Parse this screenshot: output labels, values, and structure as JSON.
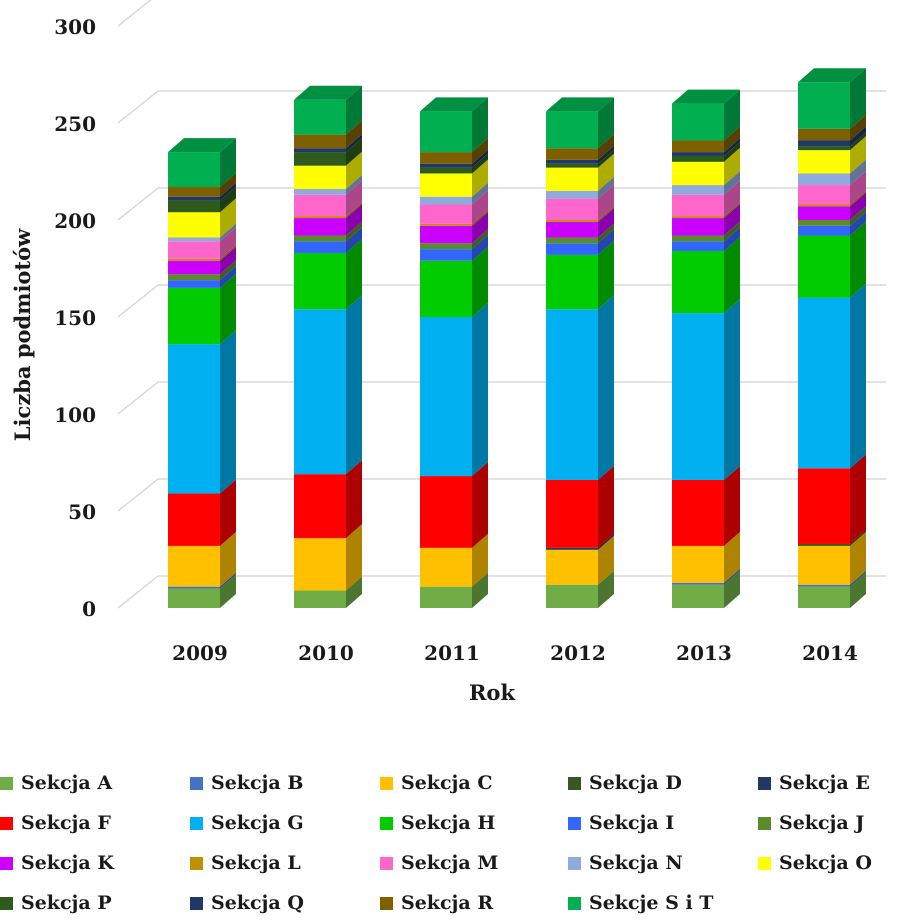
{
  "chart_data": {
    "type": "bar",
    "stacked": true,
    "three_d": true,
    "title": "",
    "xlabel": "Rok",
    "ylabel": "Liczba podmiotów",
    "ylim": [
      0,
      300
    ],
    "yticks": [
      0,
      50,
      100,
      150,
      200,
      250,
      300
    ],
    "ytick_labels": [
      "0",
      "50",
      "100",
      "150",
      "200",
      "250",
      "300"
    ],
    "grid": true,
    "legend_position": "bottom",
    "categories": [
      "2009",
      "2010",
      "2011",
      "2012",
      "2013",
      "2014"
    ],
    "series": [
      {
        "name": "Sekcja A",
        "color": "#70ad47",
        "values": [
          10,
          9,
          11,
          12,
          12,
          11
        ]
      },
      {
        "name": "Sekcja B",
        "color": "#4472c4",
        "values": [
          1,
          0,
          0,
          0,
          1,
          1
        ]
      },
      {
        "name": "Sekcja C",
        "color": "#ffc000",
        "values": [
          21,
          27,
          20,
          18,
          19,
          20
        ]
      },
      {
        "name": "Sekcja D",
        "color": "#375623",
        "values": [
          0,
          0,
          0,
          0,
          0,
          1
        ]
      },
      {
        "name": "Sekcja E",
        "color": "#203864",
        "values": [
          0,
          0,
          0,
          1,
          0,
          0
        ]
      },
      {
        "name": "Sekcja F",
        "color": "#ff0000",
        "values": [
          27,
          33,
          37,
          35,
          34,
          39
        ]
      },
      {
        "name": "Sekcja G",
        "color": "#00b0f0",
        "values": [
          77,
          85,
          82,
          88,
          86,
          88
        ]
      },
      {
        "name": "Sekcja H",
        "color": "#00cc00",
        "values": [
          29,
          29,
          29,
          28,
          32,
          32
        ]
      },
      {
        "name": "Sekcja I",
        "color": "#3366ff",
        "values": [
          4,
          6,
          6,
          6,
          5,
          5
        ]
      },
      {
        "name": "Sekcja J",
        "color": "#5b8c2a",
        "values": [
          3,
          3,
          3,
          3,
          3,
          3
        ]
      },
      {
        "name": "Sekcja K",
        "color": "#cc00ff",
        "values": [
          7,
          9,
          9,
          8,
          9,
          7
        ]
      },
      {
        "name": "Sekcja L",
        "color": "#bf9000",
        "values": [
          1,
          1,
          1,
          1,
          1,
          1
        ]
      },
      {
        "name": "Sekcja M",
        "color": "#ff66cc",
        "values": [
          9,
          11,
          10,
          11,
          11,
          10
        ]
      },
      {
        "name": "Sekcja N",
        "color": "#8faadc",
        "values": [
          2,
          3,
          4,
          4,
          5,
          6
        ]
      },
      {
        "name": "Sekcja O",
        "color": "#ffff00",
        "values": [
          13,
          12,
          12,
          12,
          12,
          12
        ]
      },
      {
        "name": "Sekcja P",
        "color": "#2e5a1c",
        "values": [
          6,
          7,
          3,
          2,
          3,
          2
        ]
      },
      {
        "name": "Sekcja Q",
        "color": "#1f3864",
        "values": [
          2,
          2,
          2,
          2,
          2,
          3
        ]
      },
      {
        "name": "Sekcja R",
        "color": "#7f6000",
        "values": [
          5,
          7,
          6,
          6,
          6,
          6
        ]
      },
      {
        "name": "Sekcje S i T",
        "color": "#00b050",
        "values": [
          18,
          18,
          21,
          19,
          19,
          24
        ]
      }
    ]
  }
}
